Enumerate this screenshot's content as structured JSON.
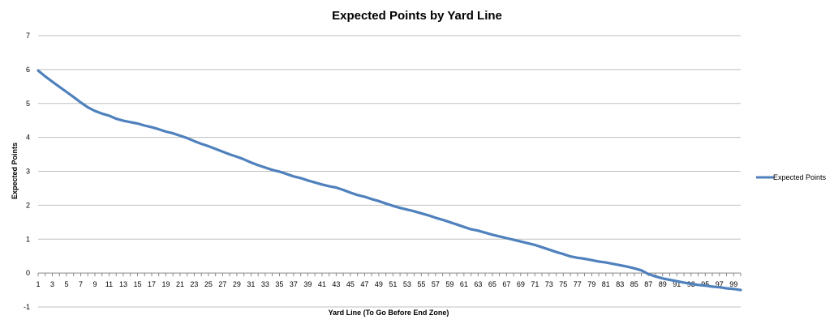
{
  "chart_data": {
    "type": "line",
    "title": "Expected Points by Yard Line",
    "xlabel": "Yard Line (To Go Before End Zone)",
    "ylabel": "Expected Points",
    "ylim": [
      -1,
      7
    ],
    "yticks": [
      "-1",
      "0",
      "1",
      "2",
      "3",
      "4",
      "5",
      "6",
      "7"
    ],
    "xticks": [
      "1",
      "3",
      "5",
      "7",
      "9",
      "11",
      "13",
      "15",
      "17",
      "19",
      "21",
      "23",
      "25",
      "27",
      "29",
      "31",
      "33",
      "35",
      "37",
      "39",
      "41",
      "43",
      "45",
      "47",
      "49",
      "51",
      "53",
      "55",
      "57",
      "59",
      "61",
      "63",
      "65",
      "67",
      "69",
      "71",
      "73",
      "75",
      "77",
      "79",
      "81",
      "83",
      "85",
      "87",
      "89",
      "91",
      "93",
      "95",
      "97",
      "99"
    ],
    "grid": true,
    "legend_position": "right",
    "colors": {
      "series": "#4f81bd",
      "grid": "#bfbfbf",
      "axis": "#888888"
    },
    "series": [
      {
        "name": "Expected Points",
        "x": [
          1,
          2,
          3,
          4,
          5,
          6,
          7,
          8,
          9,
          10,
          11,
          12,
          13,
          14,
          15,
          16,
          17,
          18,
          19,
          20,
          21,
          22,
          23,
          24,
          25,
          26,
          27,
          28,
          29,
          30,
          31,
          32,
          33,
          34,
          35,
          36,
          37,
          38,
          39,
          40,
          41,
          42,
          43,
          44,
          45,
          46,
          47,
          48,
          49,
          50,
          51,
          52,
          53,
          54,
          55,
          56,
          57,
          58,
          59,
          60,
          61,
          62,
          63,
          64,
          65,
          66,
          67,
          68,
          69,
          70,
          71,
          72,
          73,
          74,
          75,
          76,
          77,
          78,
          79,
          80,
          81,
          82,
          83,
          84,
          85,
          86,
          87,
          88,
          89,
          90,
          91,
          92,
          93,
          94,
          95,
          96,
          97,
          98,
          99,
          100
        ],
        "values": [
          5.97,
          5.8,
          5.64,
          5.49,
          5.34,
          5.19,
          5.03,
          4.89,
          4.78,
          4.7,
          4.64,
          4.55,
          4.49,
          4.45,
          4.41,
          4.35,
          4.3,
          4.24,
          4.17,
          4.12,
          4.05,
          3.98,
          3.89,
          3.81,
          3.74,
          3.66,
          3.58,
          3.5,
          3.43,
          3.35,
          3.26,
          3.18,
          3.11,
          3.04,
          2.99,
          2.92,
          2.85,
          2.8,
          2.73,
          2.67,
          2.61,
          2.56,
          2.52,
          2.45,
          2.37,
          2.3,
          2.25,
          2.18,
          2.12,
          2.05,
          1.98,
          1.92,
          1.87,
          1.82,
          1.76,
          1.7,
          1.63,
          1.57,
          1.5,
          1.43,
          1.36,
          1.29,
          1.25,
          1.19,
          1.13,
          1.08,
          1.03,
          0.98,
          0.93,
          0.88,
          0.83,
          0.76,
          0.69,
          0.62,
          0.56,
          0.49,
          0.45,
          0.42,
          0.38,
          0.34,
          0.31,
          0.27,
          0.23,
          0.19,
          0.14,
          0.08,
          -0.03,
          -0.1,
          -0.16,
          -0.2,
          -0.24,
          -0.28,
          -0.32,
          -0.35,
          -0.37,
          -0.4,
          -0.42,
          -0.45,
          -0.47,
          -0.5
        ]
      }
    ]
  }
}
